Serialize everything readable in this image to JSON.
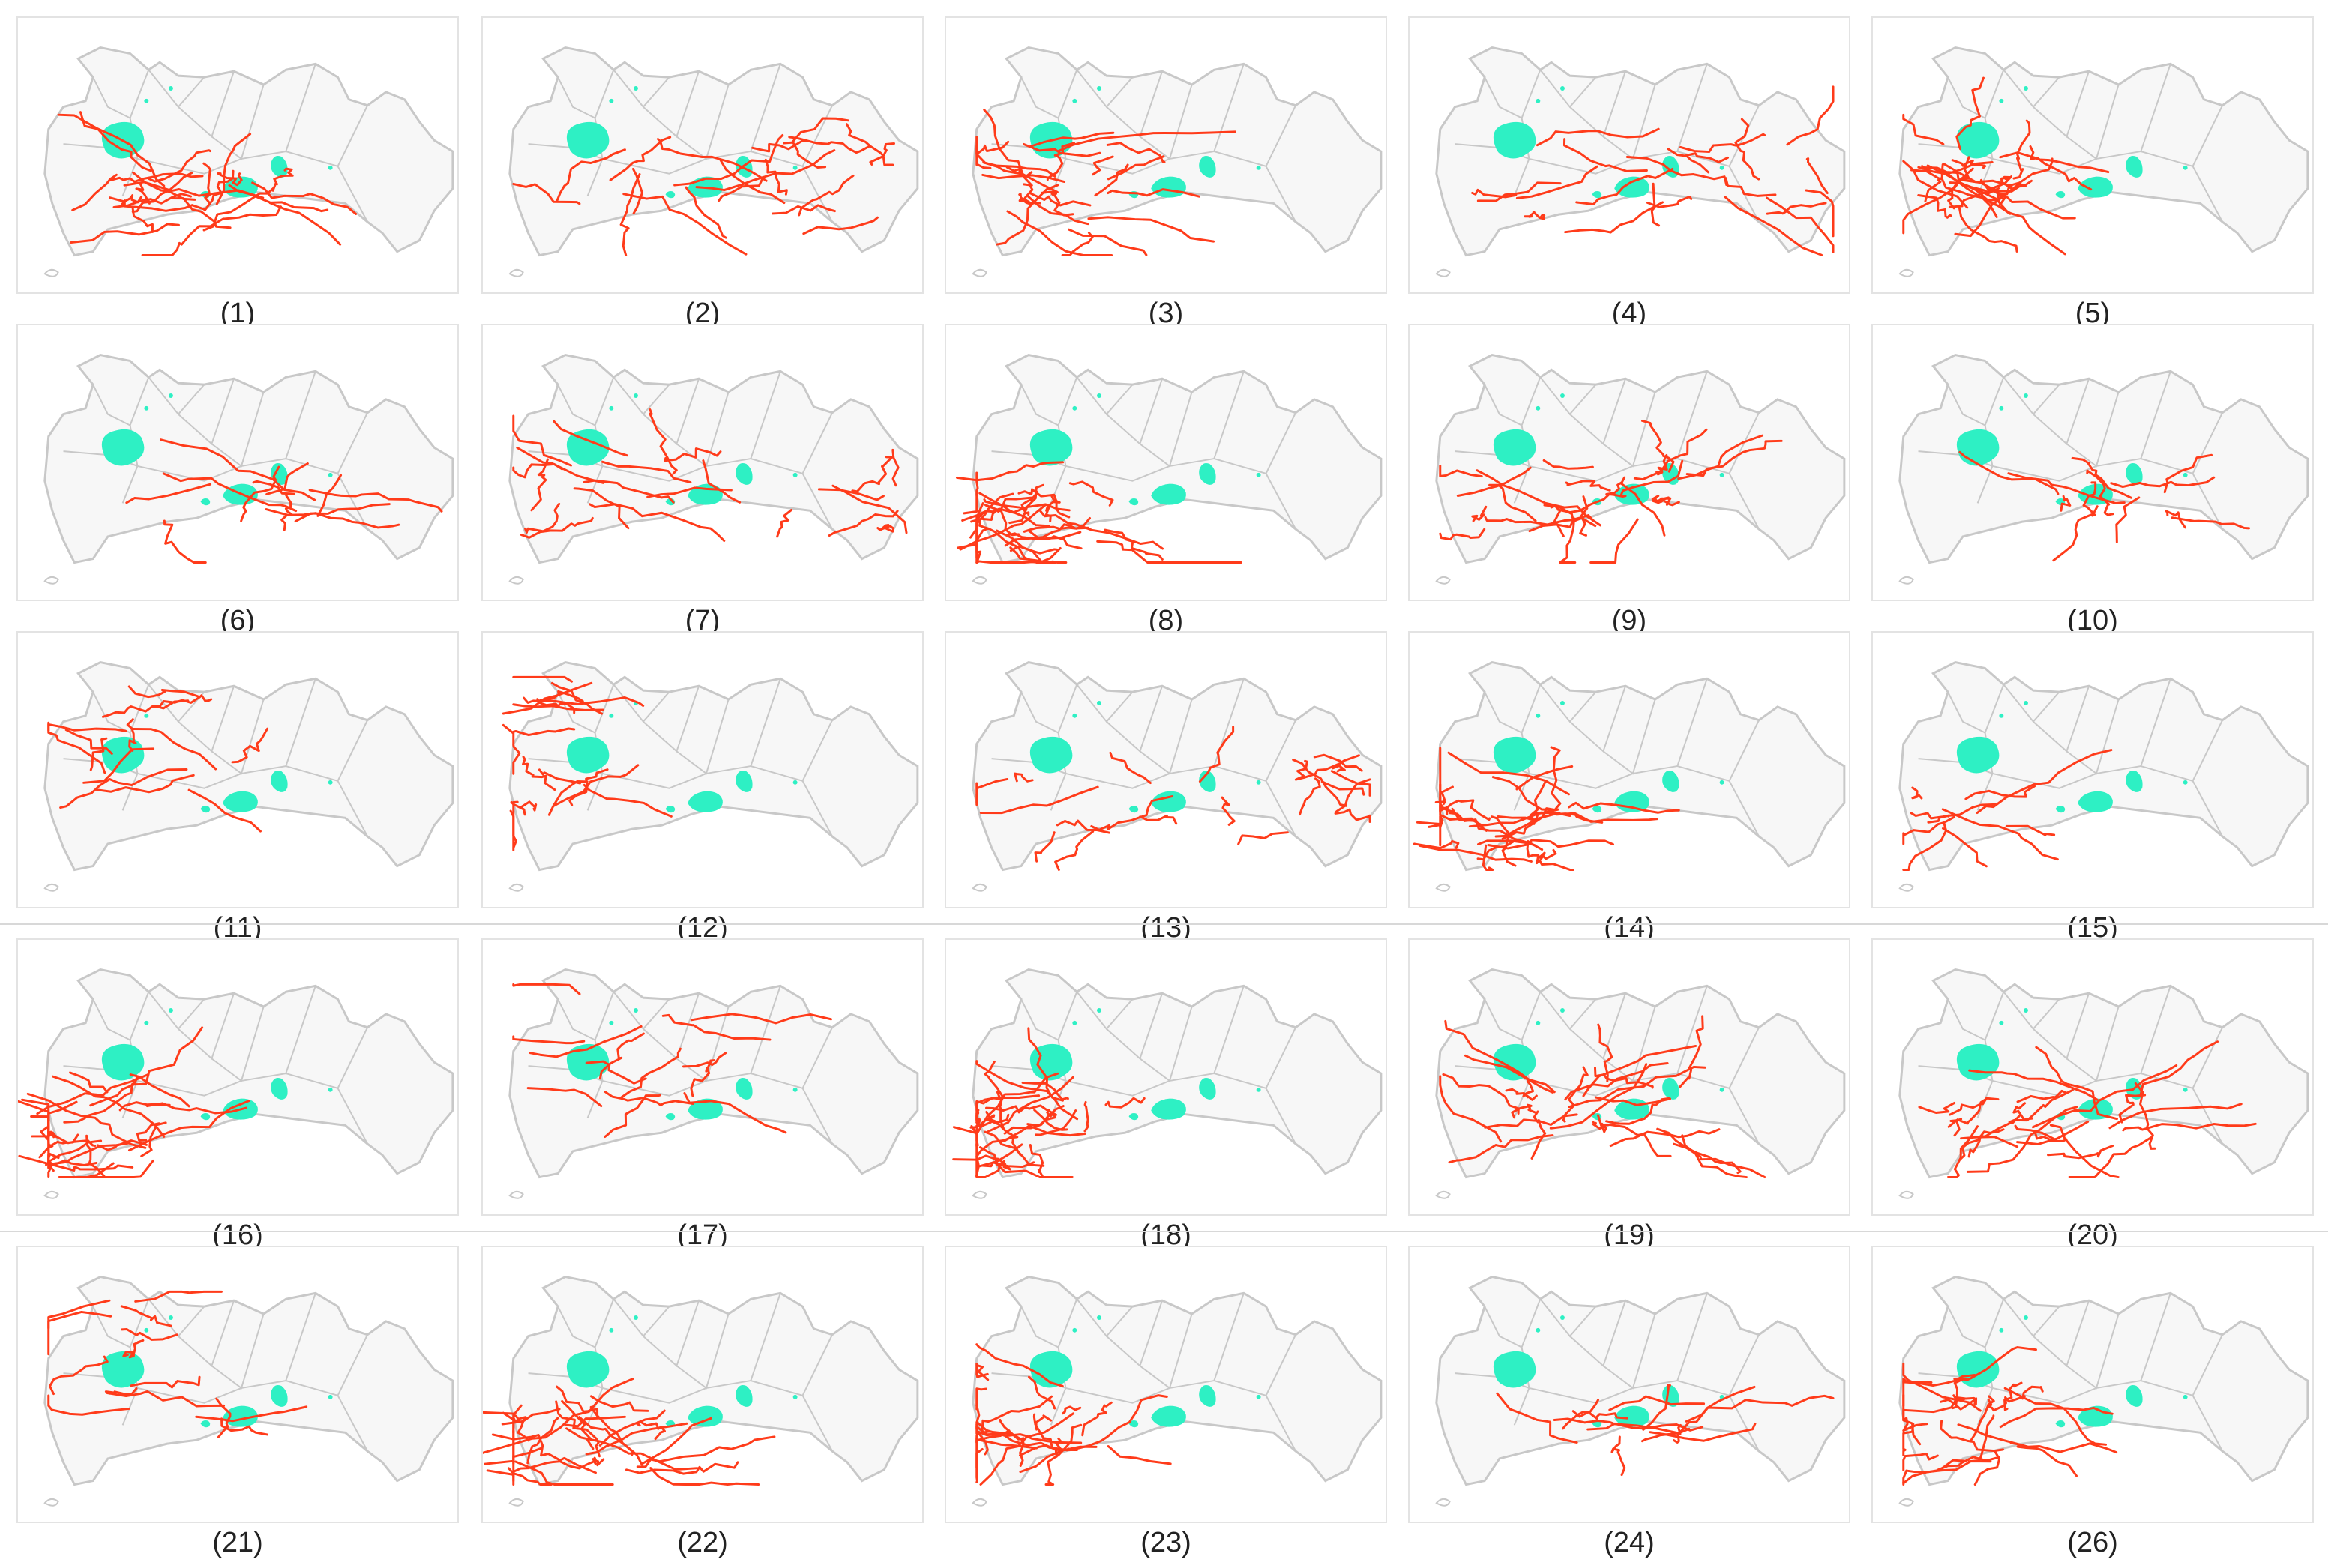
{
  "panels": [
    {
      "label": "(1)",
      "cluster": "central"
    },
    {
      "label": "(2)",
      "cluster": "east-wide"
    },
    {
      "label": "(3)",
      "cluster": "west"
    },
    {
      "label": "(4)",
      "cluster": "east-wide"
    },
    {
      "label": "(5)",
      "cluster": "west"
    },
    {
      "label": "(6)",
      "cluster": "central-sparse"
    },
    {
      "label": "(7)",
      "cluster": "east-wide"
    },
    {
      "label": "(8)",
      "cluster": "southwest"
    },
    {
      "label": "(9)",
      "cluster": "central"
    },
    {
      "label": "(10)",
      "cluster": "central-sparse"
    },
    {
      "label": "(11)",
      "cluster": "north"
    },
    {
      "label": "(12)",
      "cluster": "northwest"
    },
    {
      "label": "(13)",
      "cluster": "east-wide"
    },
    {
      "label": "(14)",
      "cluster": "southwest"
    },
    {
      "label": "(15)",
      "cluster": "southwest-sparse"
    },
    {
      "label": "(16)",
      "cluster": "southwest"
    },
    {
      "label": "(17)",
      "cluster": "north"
    },
    {
      "label": "(18)",
      "cluster": "southwest"
    },
    {
      "label": "(19)",
      "cluster": "central"
    },
    {
      "label": "(20)",
      "cluster": "central"
    },
    {
      "label": "(21)",
      "cluster": "north"
    },
    {
      "label": "(22)",
      "cluster": "southwest"
    },
    {
      "label": "(23)",
      "cluster": "west"
    },
    {
      "label": "(24)",
      "cluster": "central-sparse"
    },
    {
      "label": "(26)",
      "cluster": "west"
    }
  ],
  "colors": {
    "route": "#ff3b1a",
    "reservoir": "#2ef0c4",
    "boundary": "#c8c8c8",
    "district_fill": "#f7f7f7",
    "frame": "#e3e3e3"
  }
}
